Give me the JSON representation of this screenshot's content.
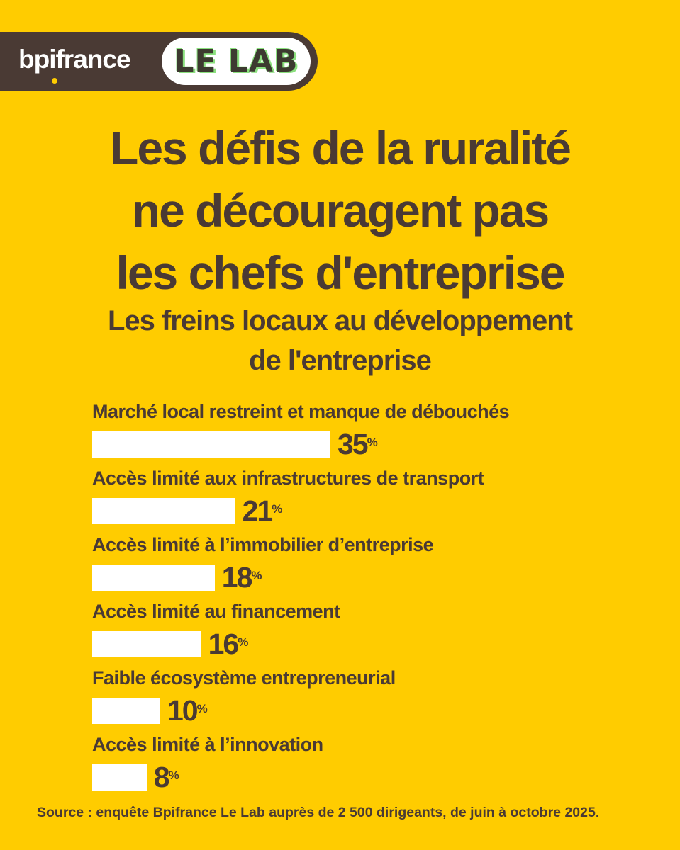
{
  "brand": {
    "name": "bpifrance",
    "lab": "LE LAB"
  },
  "title_lines": [
    "Les défis de la ruralité",
    "ne découragent pas",
    "les chefs d'entreprise"
  ],
  "subtitle_lines": [
    "Les freins locaux au développement",
    "de l'entreprise"
  ],
  "source": "Source : enquête Bpifrance Le Lab auprès de 2 500 dirigeants, de juin à octobre 2025.",
  "colors": {
    "background": "#FFCC00",
    "text": "#4A3A34",
    "bar": "#FFFFFF",
    "lab_accent": "#8BE07E"
  },
  "chart_data": {
    "type": "bar",
    "orientation": "horizontal",
    "title": "Les défis de la ruralité ne découragent pas les chefs d'entreprise",
    "subtitle": "Les freins locaux au développement de l'entreprise",
    "unit": "%",
    "categories": [
      "Marché local restreint et manque de débouchés",
      "Accès limité aux infrastructures de transport",
      "Accès limité à l’immobilier d’entreprise",
      "Accès limité au financement",
      "Faible écosystème entrepreneurial",
      "Accès limité à l’innovation"
    ],
    "values": [
      35,
      21,
      18,
      16,
      10,
      8
    ],
    "grid": false,
    "legend": "none"
  }
}
